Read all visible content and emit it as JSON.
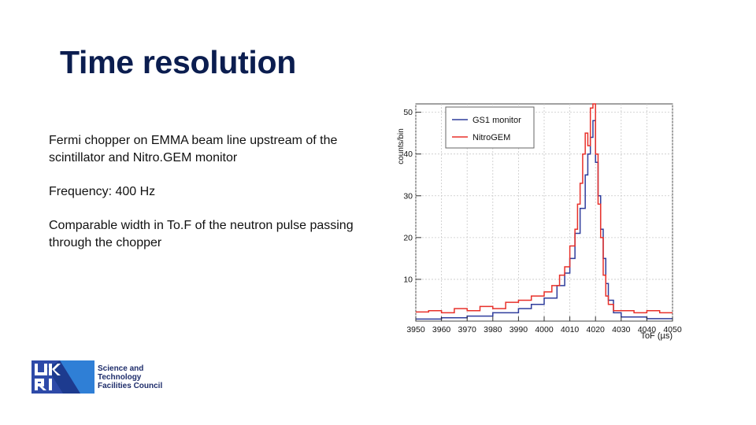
{
  "slide": {
    "title": "Time resolution",
    "bullets": [
      "Fermi chopper on EMMA beam line upstream of the scintillator and Nitro.GEM monitor",
      "Frequency: 400 Hz",
      "Comparable width in To.F of the neutron pulse passing through the chopper"
    ]
  },
  "logo": {
    "mark": "UKRI",
    "text_lines": [
      "Science and",
      "Technology",
      "Facilities Council"
    ]
  },
  "chart_data": {
    "type": "line",
    "title": "",
    "xlabel": "ToF (µs)",
    "ylabel": "counts/bin",
    "xlim": [
      3950,
      4050
    ],
    "ylim": [
      0,
      52
    ],
    "xticks": [
      3950,
      3960,
      3970,
      3980,
      3990,
      4000,
      4010,
      4020,
      4030,
      4040,
      4050
    ],
    "yticks": [
      10,
      20,
      30,
      40,
      50
    ],
    "grid": true,
    "legend_position": "top-left",
    "series": [
      {
        "name": "GS1 monitor",
        "color": "#2f3d9c",
        "style": "step",
        "x": [
          3950,
          3960,
          3970,
          3980,
          3990,
          3995,
          4000,
          4005,
          4008,
          4010,
          4012,
          4014,
          4016,
          4017,
          4018,
          4019,
          4020,
          4021,
          4022,
          4023,
          4024,
          4025,
          4027,
          4030,
          4040,
          4050
        ],
        "y": [
          0.5,
          0.8,
          1.2,
          2.0,
          3.0,
          4.0,
          5.5,
          8.5,
          11.5,
          15.0,
          21.0,
          27.0,
          35.0,
          40.0,
          44.0,
          48.0,
          38.0,
          30.0,
          22.0,
          15.0,
          9.0,
          5.0,
          2.0,
          1.0,
          0.6,
          0.6
        ]
      },
      {
        "name": "NitroGEM",
        "color": "#e8302a",
        "style": "step",
        "x": [
          3950,
          3955,
          3960,
          3965,
          3970,
          3975,
          3980,
          3985,
          3990,
          3995,
          4000,
          4003,
          4006,
          4008,
          4010,
          4012,
          4013,
          4014,
          4015,
          4016,
          4017,
          4018,
          4019,
          4020,
          4021,
          4022,
          4023,
          4024,
          4025,
          4027,
          4030,
          4035,
          4040,
          4045,
          4050
        ],
        "y": [
          2.2,
          2.5,
          2.0,
          3.0,
          2.5,
          3.5,
          3.0,
          4.5,
          5.0,
          6.0,
          7.0,
          8.5,
          11.0,
          13.0,
          18.0,
          22.0,
          28.0,
          33.0,
          40.0,
          45.0,
          42.0,
          51.0,
          52.0,
          40.0,
          28.0,
          20.0,
          11.0,
          6.0,
          4.0,
          2.5,
          2.5,
          2.0,
          2.5,
          2.0,
          2.0
        ]
      }
    ]
  }
}
